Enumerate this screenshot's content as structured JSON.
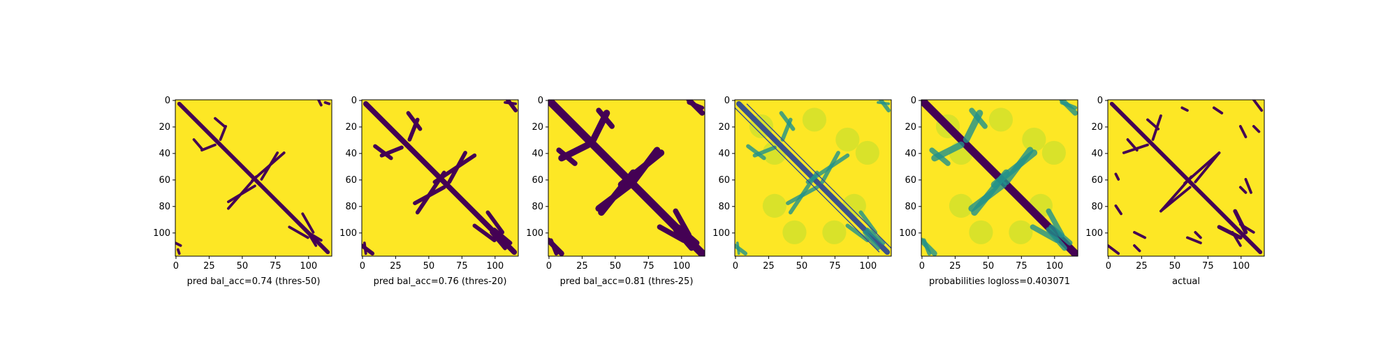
{
  "figure": {
    "colors": {
      "low": "#440154",
      "high": "#fde725",
      "mid": "#21918c",
      "mid2": "#3b528b",
      "light": "#addc30"
    }
  },
  "chart_data": [
    {
      "type": "heatmap",
      "xlabel": "pred bal_acc=0.74 (thres-50)",
      "xticks": [
        0,
        25,
        50,
        75,
        100
      ],
      "yticks": [
        0,
        20,
        40,
        60,
        80,
        100
      ],
      "xlim": [
        0,
        118
      ],
      "ylim": [
        118,
        0
      ],
      "values": "binary contact prediction: purple main diagonal band, sparse purple off-diagonal segments on yellow"
    },
    {
      "type": "heatmap",
      "xlabel": "pred bal_acc=0.76 (thres-20)",
      "xticks": [
        0,
        25,
        50,
        75,
        100
      ],
      "yticks": [
        0,
        20,
        40,
        60,
        80,
        100
      ],
      "xlim": [
        0,
        118
      ],
      "ylim": [
        118,
        0
      ],
      "values": "binary contact prediction: purple main diagonal band with thicker off-diagonal arcs"
    },
    {
      "type": "heatmap",
      "xlabel": "pred bal_acc=0.81 (thres-25)",
      "xticks": [
        0,
        25,
        50,
        75,
        100
      ],
      "yticks": [
        0,
        20,
        40,
        60,
        80,
        100
      ],
      "xlim": [
        0,
        118
      ],
      "ylim": [
        118,
        0
      ],
      "values": "binary contact prediction: broad purple diagonal band and prominent off-diagonal arcs"
    },
    {
      "type": "heatmap",
      "xlabel": "",
      "xticks": [
        0,
        25,
        50,
        75,
        100
      ],
      "yticks": [
        0,
        20,
        40,
        60,
        80,
        100
      ],
      "xlim": [
        0,
        118
      ],
      "ylim": [
        118,
        0
      ],
      "values": "continuous map: yellow-green field, teal/blue off-diagonal lines and blobs"
    },
    {
      "type": "heatmap",
      "xlabel": "probabilities logloss=0.403071",
      "xticks": [
        0,
        25,
        50,
        75,
        100
      ],
      "yticks": [
        0,
        20,
        40,
        60,
        80,
        100
      ],
      "xlim": [
        0,
        118
      ],
      "ylim": [
        118,
        0
      ],
      "values": "continuous probability map: dark purple diagonal, teal off-diagonal arcs on yellow-green"
    },
    {
      "type": "heatmap",
      "xlabel": "actual",
      "xticks": [
        0,
        25,
        50,
        75,
        100
      ],
      "yticks": [
        0,
        20,
        40,
        60,
        80,
        100
      ],
      "xlim": [
        0,
        118
      ],
      "ylim": [
        118,
        0
      ],
      "values": "binary actual contact map: purple diagonal and scattered purple segments on yellow"
    }
  ]
}
